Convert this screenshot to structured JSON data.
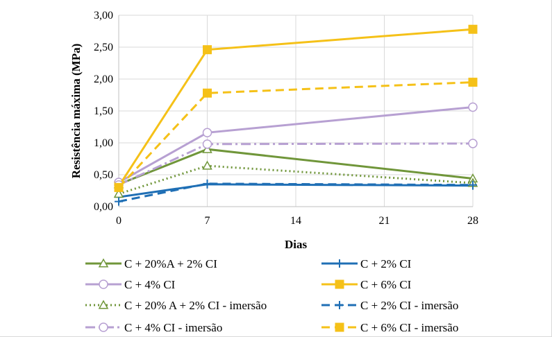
{
  "chart_data": {
    "type": "line",
    "xlabel": "Dias",
    "ylabel": "Resistência máxima (MPa)",
    "x": [
      0,
      7,
      28
    ],
    "x_ticks": [
      "0",
      "7",
      "14",
      "21",
      "28"
    ],
    "xlim": [
      0,
      28
    ],
    "y_ticks": [
      "0,00",
      "0,50",
      "1,00",
      "1,50",
      "2,00",
      "2,50",
      "3,00"
    ],
    "ylim": [
      0,
      3
    ],
    "grid": "horizontal",
    "legend_position": "bottom",
    "series": [
      {
        "name": "C + 20%A + 2% CI",
        "values": [
          0.35,
          0.9,
          0.44
        ],
        "color": "#70963a",
        "dash": "solid",
        "marker": "triangle"
      },
      {
        "name": "C + 2% CI",
        "values": [
          0.15,
          0.35,
          0.33
        ],
        "color": "#1f6fb5",
        "dash": "solid",
        "marker": "plus"
      },
      {
        "name": "C + 4% CI",
        "values": [
          0.38,
          1.16,
          1.56
        ],
        "color": "#b7a0d2",
        "dash": "solid",
        "marker": "circle"
      },
      {
        "name": "C + 6% CI",
        "values": [
          0.32,
          2.46,
          2.78
        ],
        "color": "#f5c118",
        "dash": "solid",
        "marker": "square"
      },
      {
        "name": "C + 20% A + 2% CI - imersão",
        "values": [
          0.2,
          0.64,
          0.37
        ],
        "color": "#70963a",
        "dash": "dotted",
        "marker": "triangle"
      },
      {
        "name": "C + 2% CI  - imersão",
        "values": [
          0.08,
          0.36,
          0.34
        ],
        "color": "#1f6fb5",
        "dash": "dashed",
        "marker": "plus"
      },
      {
        "name": "C + 4% CI  - imersão",
        "values": [
          0.34,
          0.98,
          0.99
        ],
        "color": "#b7a0d2",
        "dash": "dashdot",
        "marker": "circle"
      },
      {
        "name": "C + 6% CI  - imersão",
        "values": [
          0.3,
          1.78,
          1.95
        ],
        "color": "#f5c118",
        "dash": "dashed",
        "marker": "square"
      }
    ]
  }
}
